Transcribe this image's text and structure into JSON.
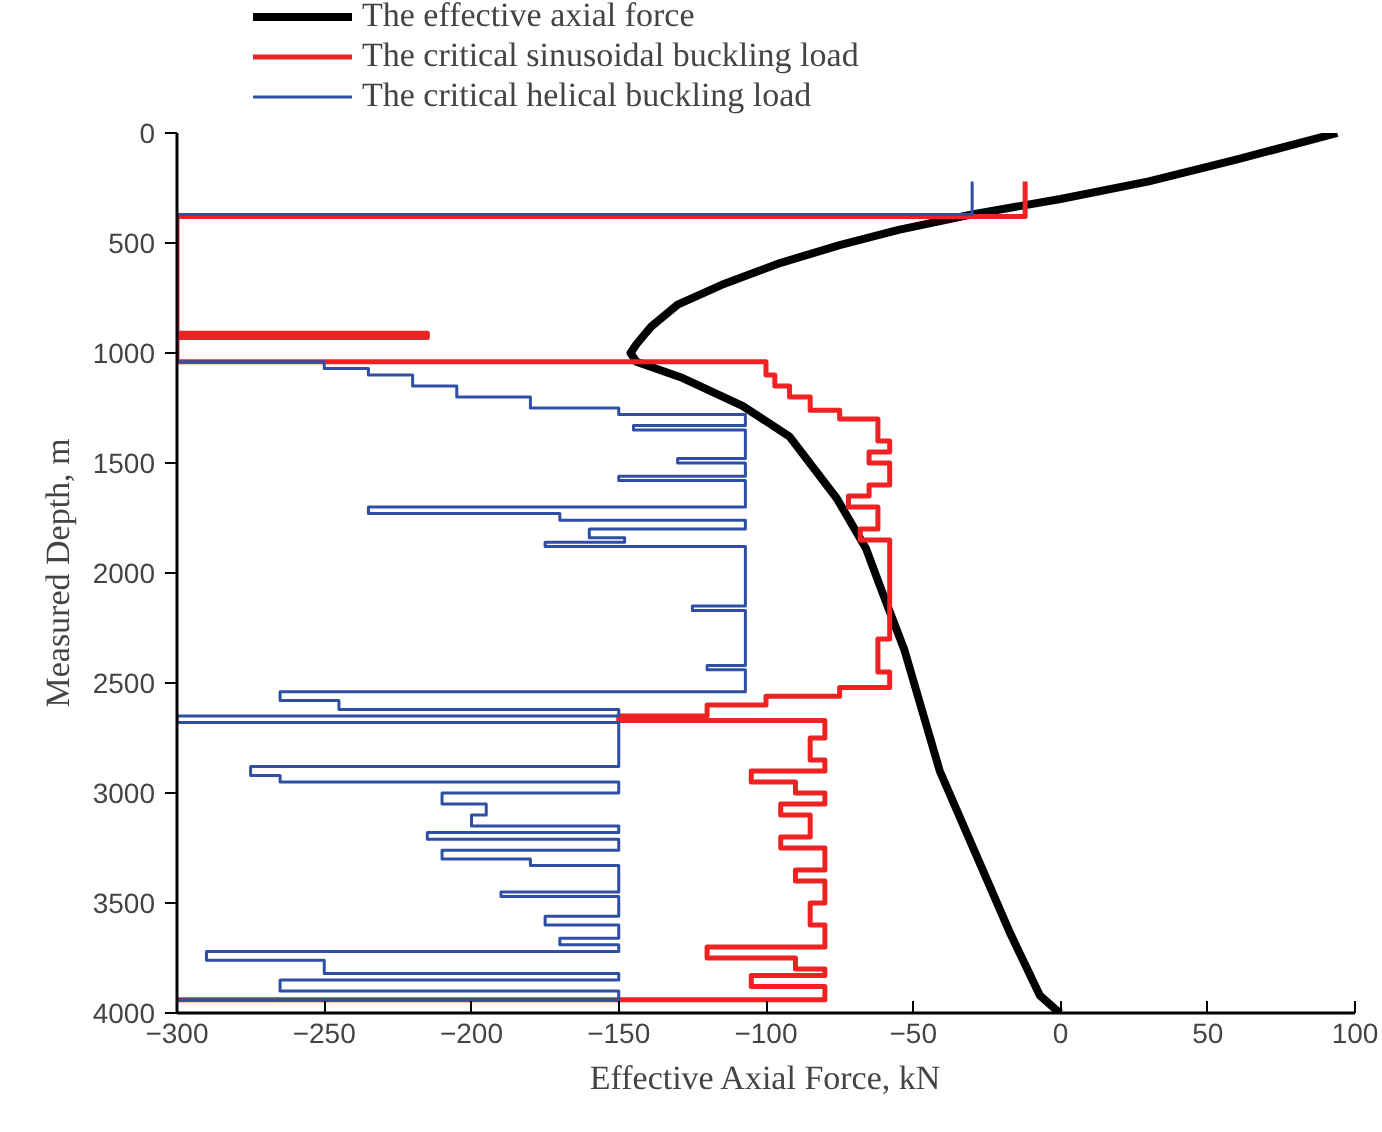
{
  "chart_data": {
    "type": "line",
    "xlabel": "Effective Axial Force, kN",
    "ylabel": "Measured Depth, m",
    "xlim": [
      -300,
      100
    ],
    "xticks": [
      -300,
      -250,
      -200,
      -150,
      -100,
      -50,
      0,
      50,
      100
    ],
    "ylim": [
      4000,
      0
    ],
    "yticks": [
      0,
      500,
      1000,
      1500,
      2000,
      2500,
      3000,
      3500,
      4000
    ],
    "grid": false,
    "legend": "top left",
    "series": [
      {
        "name": "The effective axial force",
        "color": "#000000",
        "x": [
          94,
          60,
          30,
          0,
          -30,
          -55,
          -75,
          -95,
          -115,
          -130,
          -139,
          -144,
          -146,
          -144,
          -129,
          -108,
          -92,
          -76,
          -66,
          -61,
          -53,
          -41,
          -29,
          -17,
          -7,
          -2,
          0
        ],
        "values": [
          0,
          120,
          220,
          300,
          370,
          440,
          510,
          590,
          690,
          780,
          880,
          960,
          1000,
          1040,
          1110,
          1240,
          1380,
          1660,
          1890,
          2070,
          2350,
          2900,
          3270,
          3640,
          3920,
          3980,
          4000
        ]
      },
      {
        "name": "The critical sinusoidal buckling load",
        "color": "#ee2222",
        "x": [
          -12,
          -12,
          -300,
          -300,
          -215,
          -215,
          -300,
          -300,
          -100,
          -100,
          -97,
          -97,
          -92,
          -92,
          -85,
          -85,
          -75,
          -75,
          -62,
          -62,
          -58,
          -58,
          -65,
          -65,
          -58,
          -58,
          -65,
          -65,
          -72,
          -72,
          -62,
          -62,
          -68,
          -68,
          -58,
          -58,
          -62,
          -62,
          -58,
          -58,
          -75,
          -75,
          -100,
          -100,
          -120,
          -120,
          -150,
          -150,
          -80,
          -80,
          -85,
          -85,
          -80,
          -80,
          -105,
          -105,
          -90,
          -90,
          -80,
          -80,
          -95,
          -95,
          -85,
          -85,
          -95,
          -95,
          -80,
          -80,
          -90,
          -90,
          -80,
          -80,
          -85,
          -85,
          -80,
          -80,
          -120,
          -120,
          -90,
          -90,
          -80,
          -80,
          -105,
          -105,
          -80,
          -80,
          -300
        ],
        "values": [
          220,
          380,
          380,
          910,
          910,
          930,
          930,
          1040,
          1040,
          1100,
          1100,
          1150,
          1150,
          1200,
          1200,
          1260,
          1260,
          1300,
          1300,
          1400,
          1400,
          1450,
          1450,
          1500,
          1500,
          1600,
          1600,
          1650,
          1650,
          1700,
          1700,
          1800,
          1800,
          1850,
          1850,
          2300,
          2300,
          2450,
          2450,
          2520,
          2520,
          2560,
          2560,
          2600,
          2600,
          2650,
          2650,
          2670,
          2670,
          2750,
          2750,
          2850,
          2850,
          2900,
          2900,
          2950,
          2950,
          3000,
          3000,
          3050,
          3050,
          3100,
          3100,
          3200,
          3200,
          3250,
          3250,
          3350,
          3350,
          3400,
          3400,
          3500,
          3500,
          3600,
          3600,
          3700,
          3700,
          3750,
          3750,
          3800,
          3800,
          3830,
          3830,
          3880,
          3880,
          3940,
          3940
        ]
      },
      {
        "name": "The critical helical buckling load",
        "color": "#2e4fa3",
        "x": [
          -30,
          -30,
          -300,
          -300,
          -250,
          -250,
          -235,
          -235,
          -220,
          -220,
          -205,
          -205,
          -180,
          -180,
          -150,
          -150,
          -107,
          -107,
          -145,
          -145,
          -107,
          -107,
          -130,
          -130,
          -107,
          -107,
          -150,
          -150,
          -107,
          -107,
          -235,
          -235,
          -170,
          -170,
          -107,
          -107,
          -160,
          -160,
          -148,
          -148,
          -175,
          -175,
          -107,
          -107,
          -125,
          -125,
          -107,
          -107,
          -120,
          -120,
          -107,
          -107,
          -265,
          -265,
          -245,
          -245,
          -150,
          -150,
          -300,
          -300,
          -150,
          -150,
          -275,
          -275,
          -265,
          -265,
          -150,
          -150,
          -210,
          -210,
          -195,
          -195,
          -200,
          -200,
          -150,
          -150,
          -215,
          -215,
          -150,
          -150,
          -210,
          -210,
          -180,
          -180,
          -150,
          -150,
          -190,
          -190,
          -150,
          -150,
          -175,
          -175,
          -150,
          -150,
          -170,
          -170,
          -150,
          -150,
          -290,
          -290,
          -250,
          -250,
          -150,
          -150,
          -265,
          -265,
          -150,
          -150,
          -300
        ],
        "values": [
          220,
          370,
          370,
          1040,
          1040,
          1070,
          1070,
          1100,
          1100,
          1150,
          1150,
          1200,
          1200,
          1250,
          1250,
          1280,
          1280,
          1330,
          1330,
          1350,
          1350,
          1480,
          1480,
          1500,
          1500,
          1560,
          1560,
          1580,
          1580,
          1700,
          1700,
          1730,
          1730,
          1760,
          1760,
          1800,
          1800,
          1840,
          1840,
          1860,
          1860,
          1880,
          1880,
          2150,
          2150,
          2170,
          2170,
          2420,
          2420,
          2440,
          2440,
          2540,
          2540,
          2580,
          2580,
          2620,
          2620,
          2650,
          2650,
          2680,
          2680,
          2880,
          2880,
          2920,
          2920,
          2950,
          2950,
          3000,
          3000,
          3050,
          3050,
          3100,
          3100,
          3150,
          3150,
          3180,
          3180,
          3210,
          3210,
          3260,
          3260,
          3300,
          3300,
          3330,
          3330,
          3450,
          3450,
          3470,
          3470,
          3560,
          3560,
          3600,
          3600,
          3660,
          3660,
          3690,
          3690,
          3720,
          3720,
          3760,
          3760,
          3820,
          3820,
          3850,
          3850,
          3900,
          3900,
          3940,
          3940
        ]
      }
    ]
  }
}
